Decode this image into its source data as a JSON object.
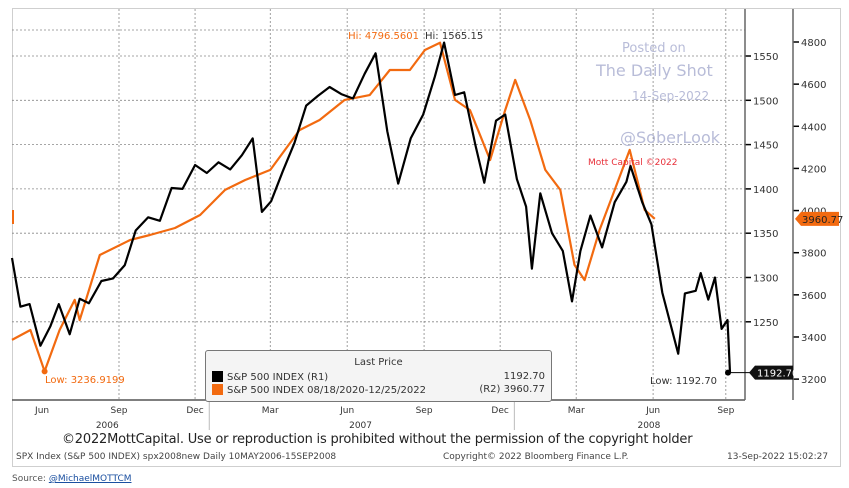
{
  "chart_data": {
    "type": "line",
    "title": "",
    "x_range": [
      "2006-05-10",
      "2008-09-15"
    ],
    "x_ticks": [
      {
        "label": "Jun",
        "date": "2006-06-15"
      },
      {
        "label": "Sep",
        "date": "2006-09-15"
      },
      {
        "label": "Dec",
        "date": "2006-12-15"
      },
      {
        "label": "Mar",
        "date": "2007-03-15"
      },
      {
        "label": "Jun",
        "date": "2007-06-15"
      },
      {
        "label": "Sep",
        "date": "2007-09-15"
      },
      {
        "label": "Dec",
        "date": "2007-12-15"
      },
      {
        "label": "Mar",
        "date": "2008-03-15"
      },
      {
        "label": "Jun",
        "date": "2008-06-15"
      },
      {
        "label": "Sep",
        "date": "2008-09-10"
      }
    ],
    "year_labels": [
      {
        "label": "2006",
        "date": "2006-09-01"
      },
      {
        "label": "2007",
        "date": "2007-07-01"
      },
      {
        "label": "2008",
        "date": "2008-06-10"
      }
    ],
    "year_dividers": [
      "2007-01-01",
      "2008-01-01"
    ],
    "left_axis": {
      "range": [
        1170,
        1605
      ],
      "ticks": [
        1250,
        1300,
        1350,
        1400,
        1450,
        1500,
        1550
      ]
    },
    "right_axis": {
      "range": [
        3100,
        4880
      ],
      "ticks": [
        3200,
        3400,
        3600,
        3800,
        4000,
        4200,
        4400,
        4600,
        4800
      ]
    },
    "grid": true,
    "legend": {
      "title": "Last Price",
      "placement": "bottom-center",
      "entries": [
        {
          "label": "S&P 500 INDEX  (R1)",
          "value": "1192.70"
        },
        {
          "label": "S&P 500 INDEX 08/18/2020-12/25/2022",
          "axis": "(R2)",
          "value": "3960.77"
        }
      ]
    },
    "series": [
      {
        "name": "S&P 500 INDEX (R1)",
        "color": "#000000",
        "axis": "left",
        "points": [
          [
            "2006-05-10",
            1322
          ],
          [
            "2006-05-20",
            1267
          ],
          [
            "2006-05-31",
            1270
          ],
          [
            "2006-06-13",
            1223
          ],
          [
            "2006-06-25",
            1245
          ],
          [
            "2006-07-05",
            1270
          ],
          [
            "2006-07-18",
            1236
          ],
          [
            "2006-07-30",
            1276
          ],
          [
            "2006-08-10",
            1271
          ],
          [
            "2006-08-25",
            1296
          ],
          [
            "2006-09-08",
            1299
          ],
          [
            "2006-09-22",
            1314
          ],
          [
            "2006-10-05",
            1353
          ],
          [
            "2006-10-20",
            1368
          ],
          [
            "2006-11-03",
            1364
          ],
          [
            "2006-11-17",
            1401
          ],
          [
            "2006-11-30",
            1400
          ],
          [
            "2006-12-15",
            1427
          ],
          [
            "2006-12-29",
            1418
          ],
          [
            "2007-01-12",
            1430
          ],
          [
            "2007-01-26",
            1422
          ],
          [
            "2007-02-09",
            1438
          ],
          [
            "2007-02-22",
            1457
          ],
          [
            "2007-03-05",
            1374
          ],
          [
            "2007-03-16",
            1386
          ],
          [
            "2007-03-30",
            1420
          ],
          [
            "2007-04-13",
            1452
          ],
          [
            "2007-04-27",
            1494
          ],
          [
            "2007-05-11",
            1505
          ],
          [
            "2007-05-25",
            1515
          ],
          [
            "2007-06-08",
            1507
          ],
          [
            "2007-06-22",
            1502
          ],
          [
            "2007-07-06",
            1530
          ],
          [
            "2007-07-19",
            1553
          ],
          [
            "2007-08-02",
            1465
          ],
          [
            "2007-08-15",
            1406
          ],
          [
            "2007-08-30",
            1457
          ],
          [
            "2007-09-14",
            1484
          ],
          [
            "2007-09-28",
            1527
          ],
          [
            "2007-10-09",
            1565.15
          ],
          [
            "2007-10-22",
            1506
          ],
          [
            "2007-11-02",
            1509
          ],
          [
            "2007-11-15",
            1451
          ],
          [
            "2007-11-26",
            1407
          ],
          [
            "2007-12-10",
            1477
          ],
          [
            "2007-12-21",
            1484
          ],
          [
            "2008-01-04",
            1411
          ],
          [
            "2008-01-15",
            1380
          ],
          [
            "2008-01-22",
            1310
          ],
          [
            "2008-02-01",
            1395
          ],
          [
            "2008-02-15",
            1350
          ],
          [
            "2008-02-28",
            1330
          ],
          [
            "2008-03-10",
            1273
          ],
          [
            "2008-03-20",
            1330
          ],
          [
            "2008-04-01",
            1370
          ],
          [
            "2008-04-15",
            1334
          ],
          [
            "2008-04-30",
            1385
          ],
          [
            "2008-05-14",
            1408
          ],
          [
            "2008-05-19",
            1426
          ],
          [
            "2008-06-02",
            1385
          ],
          [
            "2008-06-13",
            1360
          ],
          [
            "2008-06-26",
            1283
          ],
          [
            "2008-07-15",
            1214
          ],
          [
            "2008-07-23",
            1282
          ],
          [
            "2008-08-05",
            1285
          ],
          [
            "2008-08-11",
            1305
          ],
          [
            "2008-08-20",
            1275
          ],
          [
            "2008-08-28",
            1300
          ],
          [
            "2008-09-05",
            1242
          ],
          [
            "2008-09-12",
            1252
          ],
          [
            "2008-09-15",
            1192.7
          ]
        ]
      },
      {
        "name": "S&P 500 INDEX 08/18/2020-12/25/2022 (R2)",
        "color": "#f26a10",
        "axis": "right",
        "aligned_day_points": [
          [
            0,
            3386
          ],
          [
            22,
            3433
          ],
          [
            39,
            3236.92
          ],
          [
            57,
            3433
          ],
          [
            75,
            3576
          ],
          [
            81,
            3480
          ],
          [
            105,
            3789
          ],
          [
            141,
            3860
          ],
          [
            165,
            3884
          ],
          [
            195,
            3917
          ],
          [
            225,
            3979
          ],
          [
            255,
            4098
          ],
          [
            279,
            4145
          ],
          [
            309,
            4193
          ],
          [
            344,
            4382
          ],
          [
            368,
            4430
          ],
          [
            398,
            4525
          ],
          [
            428,
            4548
          ],
          [
            452,
            4667
          ],
          [
            476,
            4667
          ],
          [
            494,
            4762
          ],
          [
            512,
            4796.56
          ],
          [
            530,
            4525
          ],
          [
            548,
            4477
          ],
          [
            572,
            4240
          ],
          [
            590,
            4477
          ],
          [
            602,
            4620
          ],
          [
            620,
            4430
          ],
          [
            638,
            4193
          ],
          [
            656,
            4098
          ],
          [
            673,
            3742
          ],
          [
            685,
            3670
          ],
          [
            703,
            3908
          ],
          [
            721,
            4098
          ],
          [
            739,
            4288
          ],
          [
            757,
            4003
          ],
          [
            769,
            3960.77
          ]
        ]
      }
    ],
    "annotations": {
      "orange_hi": "Hi: 4796.5601",
      "black_hi": "Hi: 1565.15",
      "orange_low": "Low: 3236.9199",
      "black_low": "Low: 1192.70",
      "mott": "Mott Capital ©2022",
      "last_black": "1192.70",
      "last_orange": "3960.77"
    }
  },
  "watermark": {
    "line1": "Posted on",
    "line2": "The Daily Shot",
    "line3": "14-Sep-2022",
    "line4": "@SoberLook"
  },
  "footer": {
    "copyright_note": "©2022MottCapital. Use or reproduction is prohibited without the permission of the copyright holder",
    "left": "SPX Index (S&P 500 INDEX) spx2008new  Daily 10MAY2006-15SEP2008",
    "middle": "Copyright© 2022 Bloomberg Finance L.P.",
    "right": "13-Sep-2022 15:02:27"
  },
  "source": {
    "label": "Source: ",
    "link": "@MichaelMOTTCM"
  }
}
